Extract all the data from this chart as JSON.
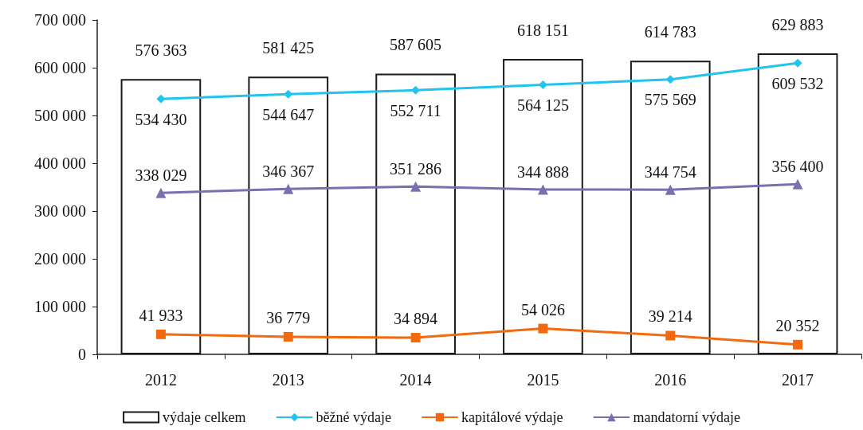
{
  "chart_data": {
    "type": "bar",
    "categories": [
      "2012",
      "2013",
      "2014",
      "2015",
      "2016",
      "2017"
    ],
    "series": [
      {
        "name": "výdaje celkem",
        "color": "#ffffff",
        "values": [
          576363,
          581425,
          587605,
          618151,
          614783,
          629883
        ],
        "value_labels": [
          "576 363",
          "581 425",
          "587 605",
          "618 151",
          "614 783",
          "629 883"
        ]
      },
      {
        "name": "běžné výdaje",
        "type": "line",
        "color": "#21c4ee",
        "marker": "diamond",
        "values": [
          534430,
          544647,
          552711,
          564125,
          575569,
          609532
        ],
        "value_labels": [
          "534 430",
          "544 647",
          "552 711",
          "564 125",
          "575 569",
          "609 532"
        ]
      },
      {
        "name": "kapitálové výdaje",
        "type": "line",
        "color": "#f26a10",
        "marker": "square",
        "values": [
          41933,
          36779,
          34894,
          54026,
          39214,
          20352
        ],
        "value_labels": [
          "41 933",
          "36 779",
          "34 894",
          "54 026",
          "39 214",
          "20 352"
        ]
      },
      {
        "name": "mandatorní výdaje",
        "type": "line",
        "color": "#7a70b0",
        "marker": "triangle",
        "values": [
          338029,
          346367,
          351286,
          344888,
          344754,
          356400
        ],
        "value_labels": [
          "338 029",
          "346 367",
          "351 286",
          "344 888",
          "344 754",
          "356 400"
        ]
      }
    ],
    "ylim": [
      0,
      700000
    ],
    "yticks": [
      0,
      {
        "value": 100000,
        "label": "100 000"
      },
      {
        "value": 200000,
        "label": "200 000"
      },
      {
        "value": 300000,
        "label": "300 000"
      },
      {
        "value": 400000,
        "label": "400 000"
      },
      {
        "value": 500000,
        "label": "500 000"
      },
      {
        "value": 600000,
        "label": "600 000"
      },
      {
        "value": 700000,
        "label": "700 000"
      }
    ],
    "legend": "bottom"
  }
}
